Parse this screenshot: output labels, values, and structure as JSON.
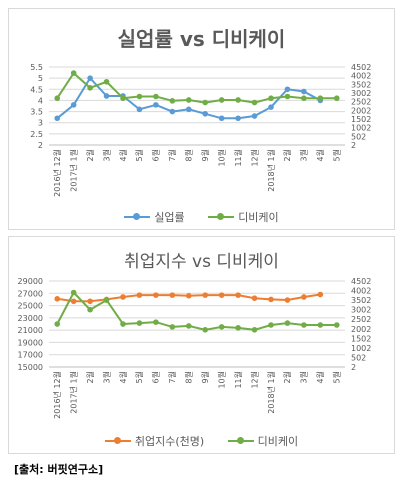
{
  "colors": {
    "blue": "#5b9bd5",
    "orange": "#ed7d31",
    "green": "#70ad47",
    "grid": "#d9d9d9",
    "axis_text": "#595959"
  },
  "source": "[출처: 버핏연구소]",
  "chart_data": [
    {
      "type": "line",
      "title": "실업률 vs 디비케이",
      "categories": [
        "2016년 12월",
        "2017년 1월",
        "2월",
        "3월",
        "4월",
        "5월",
        "6월",
        "7월",
        "8월",
        "9월",
        "10월",
        "11월",
        "12월",
        "2018년 1월",
        "2월",
        "3월",
        "4월",
        "5월"
      ],
      "y_left": {
        "ticks": [
          "2",
          "2.5",
          "3",
          "3.5",
          "4",
          "4.5",
          "5",
          "5.5"
        ],
        "ylim": [
          2,
          5.5
        ]
      },
      "y_right": {
        "ticks": [
          "2",
          "502",
          "1002",
          "1502",
          "2002",
          "2502",
          "3002",
          "3502",
          "4002",
          "4502"
        ],
        "ylim": [
          2,
          4502
        ]
      },
      "series": [
        {
          "name": "실업률",
          "color": "#5b9bd5",
          "axis": "left",
          "values": [
            3.2,
            3.8,
            5.0,
            4.2,
            4.2,
            3.6,
            3.8,
            3.5,
            3.6,
            3.4,
            3.2,
            3.2,
            3.3,
            3.7,
            4.5,
            4.4,
            4.0,
            null
          ]
        },
        {
          "name": "디비케이",
          "color": "#70ad47",
          "axis": "right",
          "values": [
            2700,
            4150,
            3300,
            3650,
            2700,
            2800,
            2800,
            2550,
            2600,
            2450,
            2600,
            2600,
            2450,
            2700,
            2800,
            2700,
            2700,
            2700
          ]
        }
      ],
      "legend": "bottom",
      "grid": true
    },
    {
      "type": "line",
      "title": "취업지수 vs 디비케이",
      "categories": [
        "2016년 12월",
        "2017년 1월",
        "2월",
        "3월",
        "4월",
        "5월",
        "6월",
        "7월",
        "8월",
        "9월",
        "10월",
        "11월",
        "12월",
        "2018년 1월",
        "2월",
        "3월",
        "4월",
        "5월"
      ],
      "y_left": {
        "ticks": [
          "15000",
          "17000",
          "19000",
          "21000",
          "23000",
          "25000",
          "27000",
          "29000"
        ],
        "ylim": [
          15000,
          29000
        ]
      },
      "y_right": {
        "ticks": [
          "2",
          "502",
          "1002",
          "1502",
          "2002",
          "2502",
          "3002",
          "3502",
          "4002",
          "4502"
        ],
        "ylim": [
          2,
          4502
        ]
      },
      "series": [
        {
          "name": "취업지수(천명)",
          "color": "#ed7d31",
          "axis": "left",
          "values": [
            26100,
            25700,
            25700,
            26000,
            26400,
            26700,
            26700,
            26700,
            26600,
            26700,
            26700,
            26700,
            26200,
            26000,
            25900,
            26400,
            26800,
            null
          ]
        },
        {
          "name": "디비케이",
          "color": "#70ad47",
          "axis": "right",
          "values": [
            2250,
            3900,
            3000,
            3500,
            2250,
            2300,
            2350,
            2100,
            2150,
            1950,
            2100,
            2050,
            1950,
            2200,
            2300,
            2200,
            2200,
            2200
          ]
        }
      ],
      "legend": "bottom",
      "grid": true
    }
  ]
}
